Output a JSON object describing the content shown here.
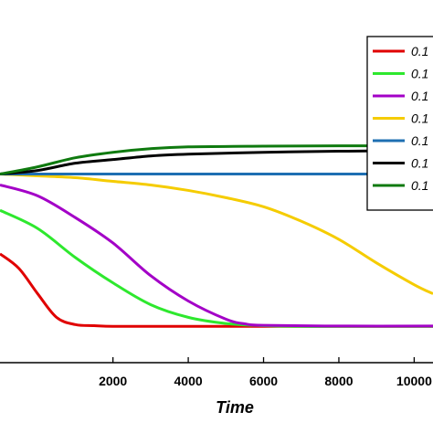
{
  "chart_data": {
    "type": "line",
    "xlabel": "Time",
    "ylabel": "",
    "xlim": [
      -1000,
      10500
    ],
    "ylim": [
      0,
      1
    ],
    "x_ticks": [
      2000,
      4000,
      6000,
      8000,
      10000
    ],
    "x_tick_labels": [
      "2000",
      "4000",
      "6000",
      "8000",
      "10000"
    ],
    "legend_position": "top-right",
    "series": [
      {
        "name": "0.1",
        "color": "#e00000",
        "x": [
          -1000,
          -500,
          0,
          500,
          1000,
          1500,
          2000,
          3000,
          5000,
          8000,
          10500
        ],
        "y": [
          0.3,
          0.26,
          0.19,
          0.125,
          0.105,
          0.102,
          0.1,
          0.1,
          0.1,
          0.1,
          0.1
        ]
      },
      {
        "name": "0.1",
        "color": "#2ee82e",
        "x": [
          -1000,
          0,
          1000,
          2000,
          3000,
          4000,
          5000,
          6000,
          7000,
          8000,
          10500
        ],
        "y": [
          0.42,
          0.37,
          0.29,
          0.22,
          0.16,
          0.125,
          0.108,
          0.102,
          0.1,
          0.1,
          0.1
        ]
      },
      {
        "name": "0.1",
        "color": "#a300c7",
        "x": [
          -1000,
          0,
          1000,
          2000,
          3000,
          4000,
          5000,
          5500,
          6000,
          8000,
          10500
        ],
        "y": [
          0.49,
          0.46,
          0.4,
          0.33,
          0.24,
          0.17,
          0.12,
          0.107,
          0.103,
          0.101,
          0.101
        ]
      },
      {
        "name": "0.1",
        "color": "#f5cc00",
        "x": [
          -1000,
          0,
          1000,
          2000,
          3000,
          4000,
          5000,
          6000,
          7000,
          8000,
          9000,
          10000,
          10500
        ],
        "y": [
          0.52,
          0.515,
          0.51,
          0.5,
          0.49,
          0.475,
          0.455,
          0.43,
          0.39,
          0.34,
          0.275,
          0.215,
          0.19
        ]
      },
      {
        "name": "0.1",
        "color": "#1e6fb2",
        "x": [
          -1000,
          10500
        ],
        "y": [
          0.52,
          0.52
        ]
      },
      {
        "name": "0.1",
        "color": "#000000",
        "x": [
          -1000,
          0,
          1000,
          2000,
          3000,
          4000,
          6000,
          8000,
          10500
        ],
        "y": [
          0.52,
          0.53,
          0.55,
          0.56,
          0.57,
          0.575,
          0.58,
          0.583,
          0.585
        ]
      },
      {
        "name": "0.1",
        "color": "#0f7a0f",
        "x": [
          -1000,
          0,
          1000,
          2000,
          3000,
          4000,
          6000,
          8000,
          10500
        ],
        "y": [
          0.52,
          0.54,
          0.565,
          0.58,
          0.59,
          0.595,
          0.597,
          0.598,
          0.598
        ]
      }
    ]
  }
}
